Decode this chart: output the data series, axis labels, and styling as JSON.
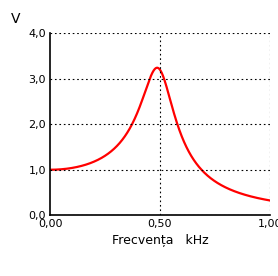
{
  "title": "",
  "ylabel": "V",
  "xlabel": "Frecvența   kHz",
  "xlim": [
    0.0,
    1.0
  ],
  "ylim": [
    0.0,
    4.0
  ],
  "xticks": [
    0.0,
    0.5,
    1.0
  ],
  "yticks": [
    0.0,
    1.0,
    2.0,
    3.0,
    4.0
  ],
  "xtick_labels": [
    "0,00",
    "0,50",
    "1,00"
  ],
  "ytick_labels": [
    "0,0",
    "1,0",
    "2,0",
    "3,0",
    "4,0"
  ],
  "curve_color": "#ff0000",
  "grid_color": "#000000",
  "background_color": "#ffffff",
  "resonance_freq": 0.5,
  "Q_factor": 3.2,
  "f0": 0.5,
  "line_width": 1.6,
  "figsize": [
    2.78,
    2.76
  ],
  "dpi": 100
}
